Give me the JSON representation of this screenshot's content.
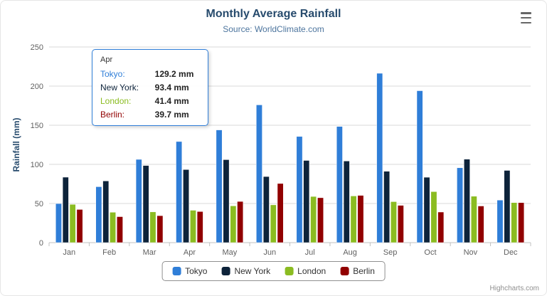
{
  "chart": {
    "title": "Monthly Average Rainfall",
    "subtitle": "Source: WorldClimate.com",
    "credits": "Highcharts.com",
    "menu_icon": "hamburger-menu"
  },
  "chart_data": {
    "type": "bar",
    "title": "Monthly Average Rainfall",
    "subtitle": "Source: WorldClimate.com",
    "categories": [
      "Jan",
      "Feb",
      "Mar",
      "Apr",
      "May",
      "Jun",
      "Jul",
      "Aug",
      "Sep",
      "Oct",
      "Nov",
      "Dec"
    ],
    "series": [
      {
        "name": "Tokyo",
        "color": "#2f7ed8",
        "values": [
          49.9,
          71.5,
          106.4,
          129.2,
          144.0,
          176.0,
          135.6,
          148.5,
          216.4,
          194.1,
          95.6,
          54.4
        ]
      },
      {
        "name": "New York",
        "color": "#0d233a",
        "values": [
          83.6,
          78.8,
          98.5,
          93.4,
          106.0,
          84.5,
          105.0,
          104.3,
          91.2,
          83.5,
          106.6,
          92.3
        ]
      },
      {
        "name": "London",
        "color": "#8bbc21",
        "values": [
          48.9,
          38.8,
          39.3,
          41.4,
          47.0,
          48.3,
          59.0,
          59.6,
          52.4,
          65.2,
          59.3,
          51.2
        ]
      },
      {
        "name": "Berlin",
        "color": "#910000",
        "values": [
          42.4,
          33.2,
          34.5,
          39.7,
          52.6,
          75.5,
          57.4,
          60.4,
          47.6,
          39.1,
          46.8,
          51.1
        ]
      }
    ],
    "xlabel": "",
    "ylabel": "Rainfall (mm)",
    "ylim": [
      0,
      250
    ],
    "yticks": [
      0,
      50,
      100,
      150,
      200,
      250
    ],
    "grid": true,
    "legend_position": "bottom"
  },
  "tooltip": {
    "category": "Apr",
    "rows": [
      {
        "label": "Tokyo:",
        "value": "129.2 mm",
        "color": "#2f7ed8"
      },
      {
        "label": "New York:",
        "value": "93.4 mm",
        "color": "#0d233a"
      },
      {
        "label": "London:",
        "value": "41.4 mm",
        "color": "#8bbc21"
      },
      {
        "label": "Berlin:",
        "value": "39.7 mm",
        "color": "#910000"
      }
    ],
    "border_color": "#2f7ed8"
  },
  "legend": {
    "items": [
      {
        "label": "Tokyo",
        "color": "#2f7ed8"
      },
      {
        "label": "New York",
        "color": "#0d233a"
      },
      {
        "label": "London",
        "color": "#8bbc21"
      },
      {
        "label": "Berlin",
        "color": "#910000"
      }
    ]
  },
  "colors": {
    "title": "#274b6d",
    "subtitle": "#4d759e",
    "axis_label": "#606060",
    "gridline": "#d8d8d8",
    "axis_line": "#c0c0c0"
  }
}
